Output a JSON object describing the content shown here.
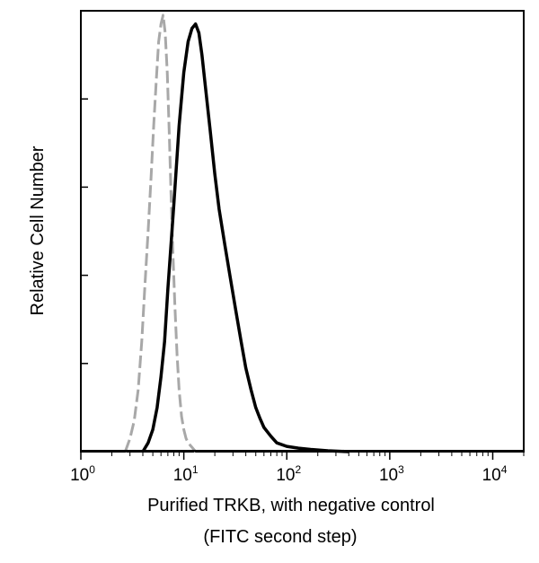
{
  "chart_data": {
    "type": "line",
    "title": "",
    "xlabel": [
      "Purified TRKB, with negative control",
      "(FITC second step)"
    ],
    "ylabel": "Relative Cell Number",
    "x_scale": "log",
    "xlim": [
      1,
      20000
    ],
    "ylim": [
      0,
      1
    ],
    "x_ticks": [
      {
        "base": "10",
        "exp": "0"
      },
      {
        "base": "10",
        "exp": "1"
      },
      {
        "base": "10",
        "exp": "2"
      },
      {
        "base": "10",
        "exp": "3"
      },
      {
        "base": "10",
        "exp": "4"
      }
    ],
    "y_ticks_labeled": false,
    "series": [
      {
        "color": "#a8a8a8",
        "style": "dashed",
        "x": [
          2.7,
          3.0,
          3.3,
          3.6,
          3.9,
          4.2,
          4.5,
          4.8,
          5.1,
          5.4,
          5.7,
          6.0,
          6.3,
          6.6,
          6.9,
          7.2,
          7.5,
          7.8,
          8.2,
          8.6,
          9.0,
          9.5,
          10.0,
          10.5,
          11.0,
          12.0,
          13.0
        ],
        "y": [
          0.0,
          0.03,
          0.07,
          0.14,
          0.25,
          0.38,
          0.5,
          0.62,
          0.74,
          0.84,
          0.93,
          0.97,
          0.99,
          0.95,
          0.86,
          0.73,
          0.59,
          0.46,
          0.33,
          0.22,
          0.14,
          0.08,
          0.05,
          0.03,
          0.02,
          0.01,
          0.0
        ]
      },
      {
        "color": "#000000",
        "style": "solid",
        "x": [
          4.0,
          4.5,
          5.0,
          5.5,
          6.0,
          6.5,
          7.0,
          8.0,
          9.0,
          10.0,
          11.0,
          12.0,
          13.0,
          14.0,
          15.0,
          16.0,
          18.0,
          20.0,
          22.0,
          25.0,
          28.0,
          32.0,
          36.0,
          40.0,
          45.0,
          50.0,
          55.0,
          60.0,
          70.0,
          80.0,
          100.0,
          130.0,
          170.0,
          250.0,
          400.0
        ],
        "y": [
          0.0,
          0.02,
          0.05,
          0.1,
          0.17,
          0.25,
          0.37,
          0.56,
          0.74,
          0.86,
          0.93,
          0.96,
          0.97,
          0.95,
          0.9,
          0.84,
          0.73,
          0.63,
          0.55,
          0.47,
          0.4,
          0.32,
          0.25,
          0.19,
          0.14,
          0.1,
          0.075,
          0.055,
          0.035,
          0.02,
          0.012,
          0.008,
          0.005,
          0.002,
          0.0
        ]
      }
    ]
  }
}
